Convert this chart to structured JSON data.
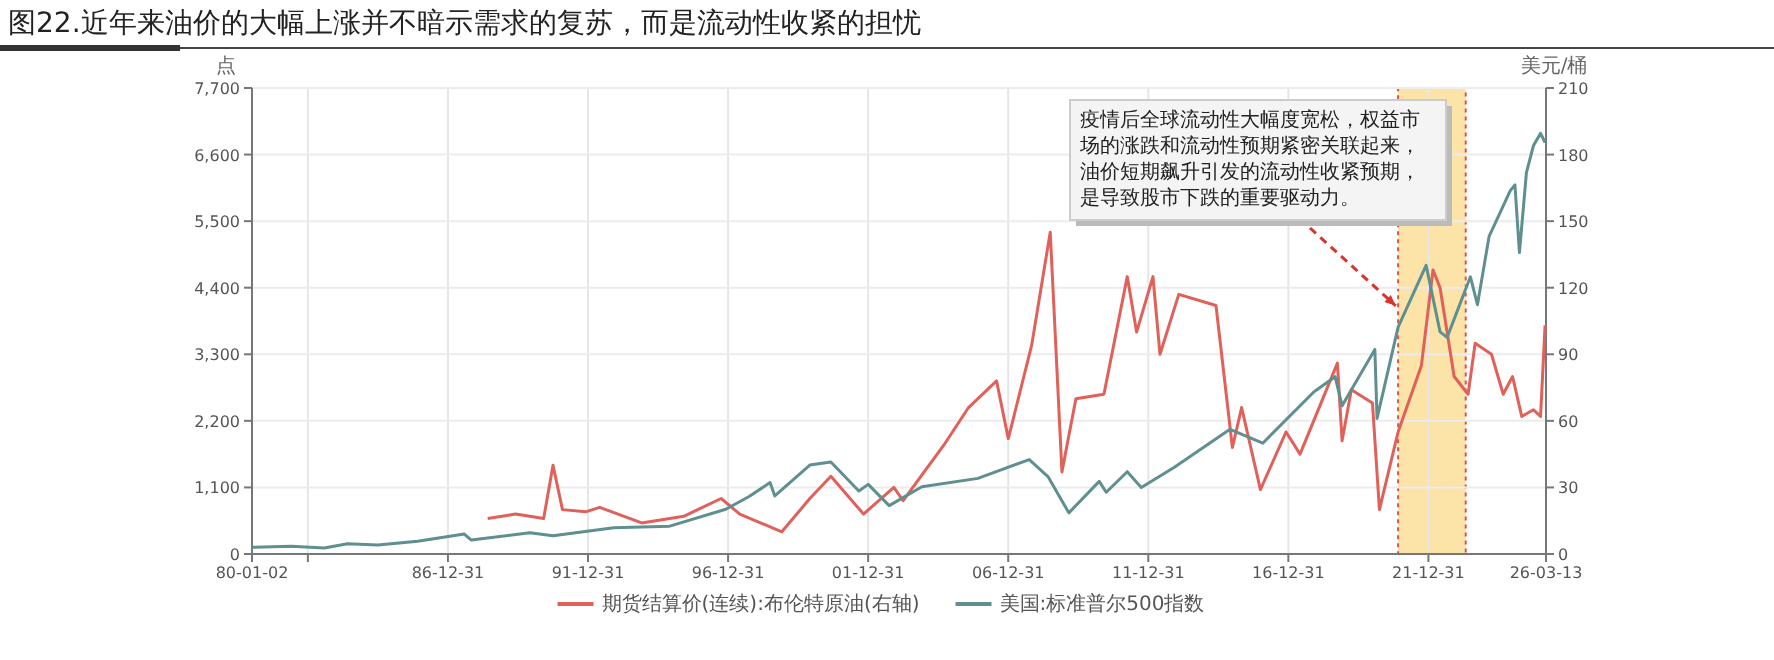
{
  "chart_data": {
    "type": "line",
    "title": "图22.近年来油价的大幅上涨并不暗示需求的复苏，而是流动性收紧的担忧",
    "ylabel": "点",
    "y2label": "美元/桶",
    "annotations": [
      {
        "text": "疫情后全球流动性大幅度宽松，权益市场的涨跌和流动性预期紧密关联起来，油价短期飙升引发的流动性收紧预期，是导致股市下跌的重要驱动力。",
        "x": "2020-11",
        "y": 4100
      }
    ],
    "bands": [
      {
        "axis": "x",
        "from": "2020-12",
        "to": "2023-05",
        "color": "#fbd98a"
      }
    ],
    "xlim": [
      "1980-01-02",
      "2026-03-13"
    ],
    "xticks": [
      {
        "value": "1980-01-02",
        "label": "80-01-02"
      },
      {
        "value": "1981-12-31",
        "label": null
      },
      {
        "value": "1986-12-31",
        "label": "86-12-31"
      },
      {
        "value": "1991-12-31",
        "label": "91-12-31"
      },
      {
        "value": "1996-12-31",
        "label": "96-12-31"
      },
      {
        "value": "2001-12-31",
        "label": "01-12-31"
      },
      {
        "value": "2006-12-31",
        "label": "06-12-31"
      },
      {
        "value": "2011-12-31",
        "label": "11-12-31"
      },
      {
        "value": "2016-12-31",
        "label": "16-12-31"
      },
      {
        "value": "2021-12-31",
        "label": "21-12-31"
      },
      {
        "value": "2026-03-13",
        "label": "26-03-13"
      }
    ],
    "ylim": [
      0,
      7700
    ],
    "yticks": [
      0,
      {
        "value": 1100,
        "label": "1,100"
      },
      {
        "value": 2200,
        "label": "2,200"
      },
      {
        "value": 3300,
        "label": "3,300"
      },
      {
        "value": 4400,
        "label": "4,400"
      },
      {
        "value": 5500,
        "label": "5,500"
      },
      {
        "value": 6600,
        "label": "6,600"
      },
      {
        "value": 7700,
        "label": "7,700"
      }
    ],
    "y2lim": [
      0,
      210
    ],
    "y2ticks": [
      0,
      30,
      60,
      90,
      120,
      150,
      180,
      210
    ],
    "grid": true,
    "legend": "bottom",
    "series": [
      {
        "name": "期货结算价(连续):布伦特原油(右轴)",
        "color": "#e0605a",
        "axis": "y2",
        "x": [
          "1988-06",
          "1989-06",
          "1990-06",
          "1990-10",
          "1991-02",
          "1991-12",
          "1992-06",
          "1993-12",
          "1995-06",
          "1996-10",
          "1997-06",
          "1998-12",
          "1999-12",
          "2000-09",
          "2001-11",
          "2002-12",
          "2003-04",
          "2004-10",
          "2005-08",
          "2006-08",
          "2007-01",
          "2007-11",
          "2008-07",
          "2008-12",
          "2009-06",
          "2010-06",
          "2011-04",
          "2011-08",
          "2012-03",
          "2012-06",
          "2013-02",
          "2014-06",
          "2015-01",
          "2015-05",
          "2016-01",
          "2016-12",
          "2017-06",
          "2018-10",
          "2018-12",
          "2019-04",
          "2020-01",
          "2020-04",
          "2020-12",
          "2021-10",
          "2022-03",
          "2022-06",
          "2022-12",
          "2023-06",
          "2023-09",
          "2024-04",
          "2024-09",
          "2025-01",
          "2025-05",
          "2025-10",
          "2026-01",
          "2026-03"
        ],
        "values": [
          16,
          18,
          16,
          40,
          20,
          19,
          21,
          14,
          17,
          25,
          18,
          10,
          25,
          35,
          18,
          30,
          24,
          50,
          66,
          78,
          52,
          94,
          145,
          37,
          70,
          72,
          125,
          100,
          125,
          90,
          117,
          112,
          48,
          66,
          29,
          55,
          45,
          86,
          51,
          74,
          68,
          20,
          55,
          85,
          128,
          120,
          80,
          72,
          95,
          90,
          72,
          80,
          62,
          65,
          62,
          103
        ]
      },
      {
        "name": "美国:标准普尔500指数",
        "color": "#5f8f8f",
        "x": [
          "1980-01-02",
          "1981-06",
          "1982-08",
          "1983-06",
          "1984-07",
          "1985-12",
          "1987-08",
          "1987-11",
          "1989-12",
          "1990-10",
          "1992-12",
          "1994-12",
          "1996-12",
          "1997-10",
          "1998-07",
          "1998-09",
          "1999-12",
          "2000-09",
          "2001-09",
          "2002-01",
          "2002-10",
          "2003-12",
          "2005-12",
          "2007-10",
          "2008-06",
          "2009-03",
          "2010-04",
          "2010-07",
          "2011-04",
          "2011-10",
          "2012-12",
          "2014-12",
          "2016-02",
          "2017-12",
          "2018-09",
          "2018-12",
          "2020-02",
          "2020-03",
          "2020-12",
          "2021-12",
          "2022-06",
          "2022-09",
          "2023-07",
          "2023-10",
          "2024-03",
          "2024-12",
          "2025-02",
          "2025-04",
          "2025-07",
          "2025-10",
          "2026-01",
          "2026-03"
        ],
        "values": [
          110,
          130,
          100,
          170,
          150,
          210,
          330,
          230,
          350,
          300,
          435,
          460,
          740,
          950,
          1180,
          960,
          1470,
          1520,
          1040,
          1150,
          800,
          1110,
          1250,
          1560,
          1280,
          680,
          1200,
          1020,
          1360,
          1100,
          1430,
          2060,
          1830,
          2680,
          2930,
          2450,
          3380,
          2240,
          3750,
          4770,
          3670,
          3580,
          4580,
          4120,
          5250,
          6000,
          6100,
          4980,
          6300,
          6750,
          6950,
          6800
        ]
      }
    ]
  }
}
